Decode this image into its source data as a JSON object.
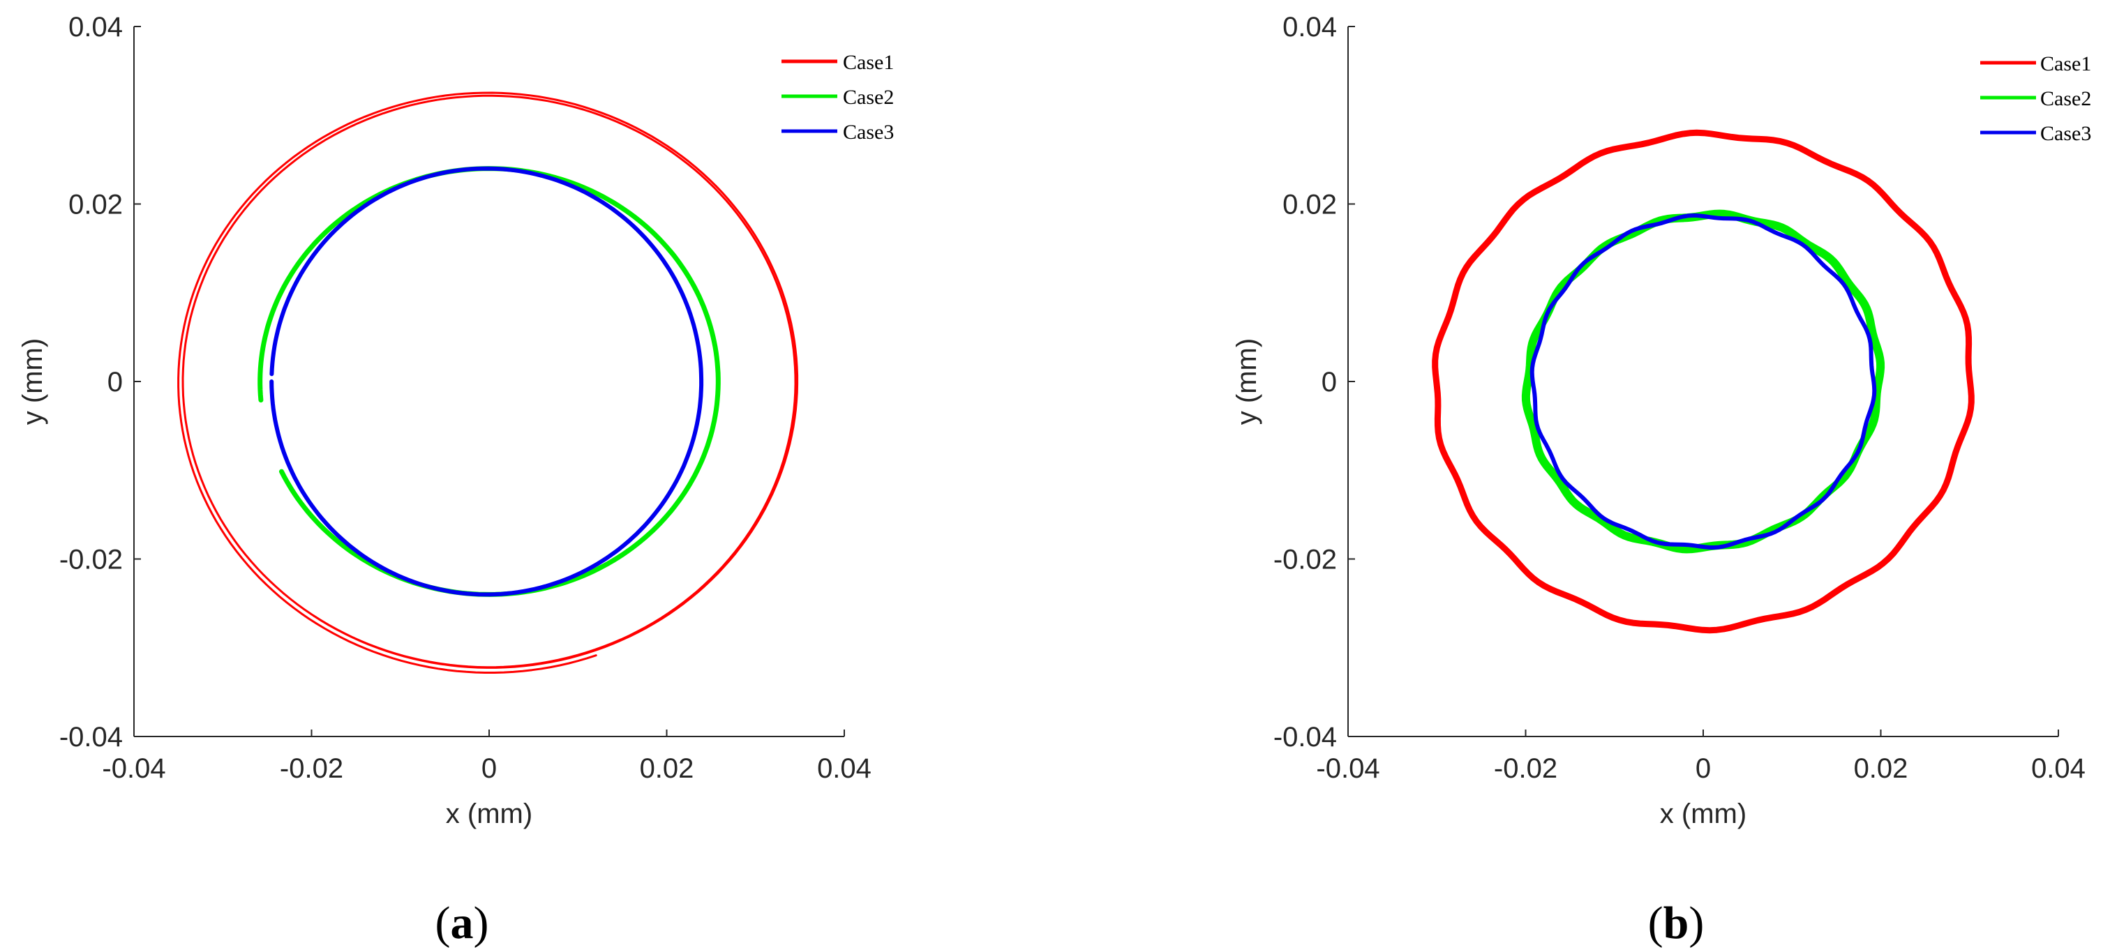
{
  "chart_data": [
    {
      "type": "line",
      "panel_label": "(a)",
      "panel_label_parts": {
        "open": "(",
        "letter": "a",
        "close": ")"
      },
      "xlabel": "x (mm)",
      "ylabel": "y (mm)",
      "xlim": [
        -0.04,
        0.04
      ],
      "ylim": [
        -0.04,
        0.04
      ],
      "xticks": [
        -0.04,
        -0.02,
        0,
        0.02,
        0.04
      ],
      "yticks": [
        -0.04,
        -0.02,
        0,
        0.02,
        0.04
      ],
      "xtick_labels": [
        "-0.04",
        "-0.02",
        "0",
        "0.02",
        "0.04"
      ],
      "ytick_labels": [
        "-0.04",
        "-0.02",
        "0",
        "0.02",
        "0.04"
      ],
      "grid": false,
      "legend_position": "top-right",
      "series": [
        {
          "name": "Case1",
          "color": "#ff0000",
          "cx": 0.0,
          "cy": 0.0,
          "rx": 0.0345,
          "ry": 0.0322,
          "tilt_deg": 0,
          "start_angle_deg": 235,
          "sweep_deg": 415,
          "line_width": 3,
          "double_trace": true
        },
        {
          "name": "Case2",
          "color": "#00ee00",
          "cx": 0.0,
          "cy": 0.0,
          "rx": 0.0258,
          "ry": 0.024,
          "tilt_deg": 0,
          "start_angle_deg": 205,
          "sweep_deg": 340,
          "line_width": 7,
          "double_trace": false
        },
        {
          "name": "Case3",
          "color": "#0000ee",
          "cx": -0.0003,
          "cy": 0.0,
          "rx": 0.0242,
          "ry": 0.024,
          "tilt_deg": 0,
          "start_angle_deg": 180,
          "sweep_deg": 358,
          "line_width": 6,
          "double_trace": false
        }
      ]
    },
    {
      "type": "line",
      "panel_label": "(b)",
      "panel_label_parts": {
        "open": "(",
        "letter": "b",
        "close": ")"
      },
      "xlabel": "x (mm)",
      "ylabel": "y (mm)",
      "xlim": [
        -0.04,
        0.04
      ],
      "ylim": [
        -0.04,
        0.04
      ],
      "xticks": [
        -0.04,
        -0.02,
        0,
        0.02,
        0.04
      ],
      "yticks": [
        -0.04,
        -0.02,
        0,
        0.02,
        0.04
      ],
      "xtick_labels": [
        "-0.04",
        "-0.02",
        "0",
        "0.02",
        "0.04"
      ],
      "ytick_labels": [
        "-0.04",
        "-0.02",
        "0",
        "0.02",
        "0.04"
      ],
      "grid": false,
      "legend_position": "top-right",
      "series": [
        {
          "name": "Case1",
          "color": "#ff0000",
          "cx": 0.0,
          "cy": 0.0,
          "rx": 0.0302,
          "ry": 0.0278,
          "tilt_deg": 8,
          "start_angle_deg": 0,
          "sweep_deg": 360,
          "line_width": 9,
          "double_trace": false
        },
        {
          "name": "Case2",
          "color": "#00ee00",
          "cx": 0.0,
          "cy": 0.0,
          "rx": 0.02,
          "ry": 0.0186,
          "tilt_deg": 20,
          "start_angle_deg": 0,
          "sweep_deg": 360,
          "line_width": 12,
          "double_trace": false
        },
        {
          "name": "Case3",
          "color": "#0000ee",
          "cx": 0.0,
          "cy": 0.0,
          "rx": 0.0192,
          "ry": 0.0186,
          "tilt_deg": 10,
          "start_angle_deg": 0,
          "sweep_deg": 360,
          "line_width": 6,
          "double_trace": false
        }
      ]
    }
  ]
}
